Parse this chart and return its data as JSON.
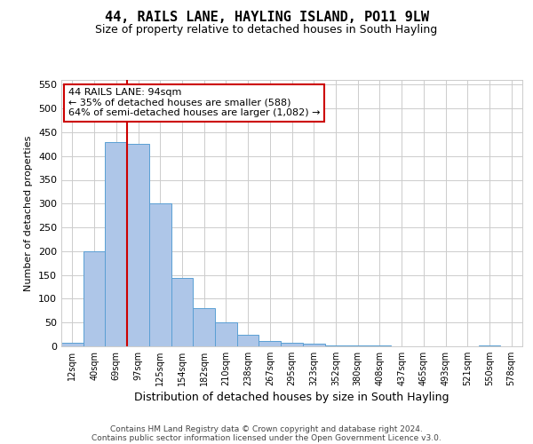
{
  "title": "44, RAILS LANE, HAYLING ISLAND, PO11 9LW",
  "subtitle": "Size of property relative to detached houses in South Hayling",
  "xlabel": "Distribution of detached houses by size in South Hayling",
  "ylabel": "Number of detached properties",
  "categories": [
    "12sqm",
    "40sqm",
    "69sqm",
    "97sqm",
    "125sqm",
    "154sqm",
    "182sqm",
    "210sqm",
    "238sqm",
    "267sqm",
    "295sqm",
    "323sqm",
    "352sqm",
    "380sqm",
    "408sqm",
    "437sqm",
    "465sqm",
    "493sqm",
    "521sqm",
    "550sqm",
    "578sqm"
  ],
  "values": [
    8,
    200,
    430,
    425,
    300,
    143,
    80,
    50,
    24,
    12,
    8,
    6,
    2,
    1,
    1,
    0,
    0,
    0,
    0,
    2,
    0
  ],
  "bar_color": "#aec6e8",
  "bar_edge_color": "#5a9fd4",
  "grid_color": "#cccccc",
  "vline_x_index": 3,
  "vline_color": "#cc0000",
  "annotation_text": "44 RAILS LANE: 94sqm\n← 35% of detached houses are smaller (588)\n64% of semi-detached houses are larger (1,082) →",
  "annotation_box_color": "#ffffff",
  "annotation_border_color": "#cc0000",
  "ylim": [
    0,
    560
  ],
  "yticks": [
    0,
    50,
    100,
    150,
    200,
    250,
    300,
    350,
    400,
    450,
    500,
    550
  ],
  "footer1": "Contains HM Land Registry data © Crown copyright and database right 2024.",
  "footer2": "Contains public sector information licensed under the Open Government Licence v3.0.",
  "background_color": "#ffffff",
  "plot_bg_color": "#ffffff",
  "title_fontsize": 11,
  "subtitle_fontsize": 9,
  "ylabel_fontsize": 8,
  "xlabel_fontsize": 9
}
